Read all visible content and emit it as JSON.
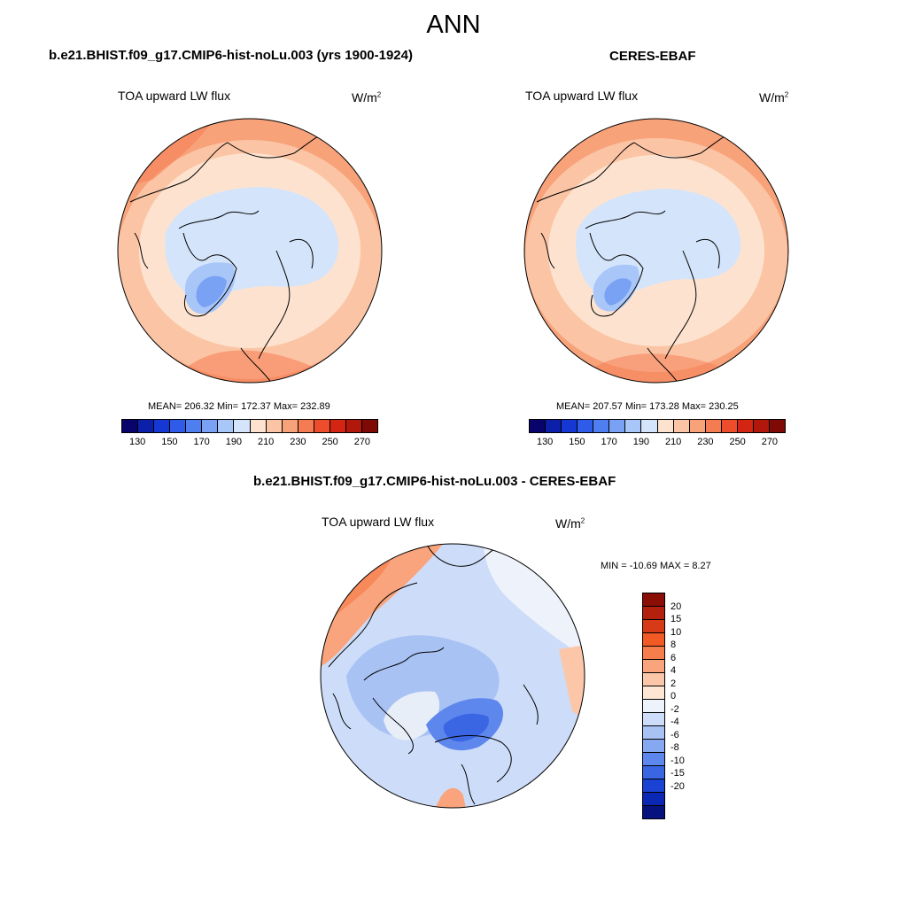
{
  "title": "ANN",
  "panels": [
    {
      "title": "b.e21.BHIST.f09_g17.CMIP6-hist-noLu.003 (yrs 1900-1924)",
      "variable": "TOA upward LW flux",
      "units_base": "W/m",
      "units_exp": "2",
      "stats": "MEAN= 206.32  Min= 172.37  Max= 232.89"
    },
    {
      "title": "CERES-EBAF",
      "variable": "TOA upward LW flux",
      "units_base": "W/m",
      "units_exp": "2",
      "stats": "MEAN= 207.57  Min= 173.28  Max= 230.25"
    },
    {
      "title": "b.e21.BHIST.f09_g17.CMIP6-hist-noLu.003 - CERES-EBAF",
      "variable": "TOA upward LW flux",
      "units_base": "W/m",
      "units_exp": "2",
      "stats": "MIN = -10.69 MAX =   8.27"
    }
  ],
  "colorbar_main": {
    "colors": [
      "#08046b",
      "#0b1fa8",
      "#1538d4",
      "#2e5be8",
      "#4f7ef0",
      "#7aa2f4",
      "#a9c6f8",
      "#d4e4fb",
      "#fde3cf",
      "#fbc5a5",
      "#f8a27a",
      "#f57b52",
      "#ee4d2c",
      "#d42513",
      "#b1180b",
      "#7f0a05"
    ],
    "ticks": [
      "130",
      "150",
      "170",
      "190",
      "210",
      "230",
      "250",
      "270"
    ]
  },
  "colorbar_diff": {
    "colors": [
      "#8a0d06",
      "#b3210e",
      "#d63a16",
      "#f25a25",
      "#f77e4c",
      "#f9a47c",
      "#fbc7a8",
      "#fde6d4",
      "#eef3fb",
      "#cddcf8",
      "#a8c2f4",
      "#86a8f0",
      "#5d87ec",
      "#3a66e3",
      "#1a43d3",
      "#0a28b4",
      "#06137f"
    ],
    "labels": [
      "20",
      "15",
      "10",
      "8",
      "6",
      "4",
      "2",
      "0",
      "-2",
      "-4",
      "-6",
      "-8",
      "-10",
      "-15",
      "-20"
    ]
  }
}
